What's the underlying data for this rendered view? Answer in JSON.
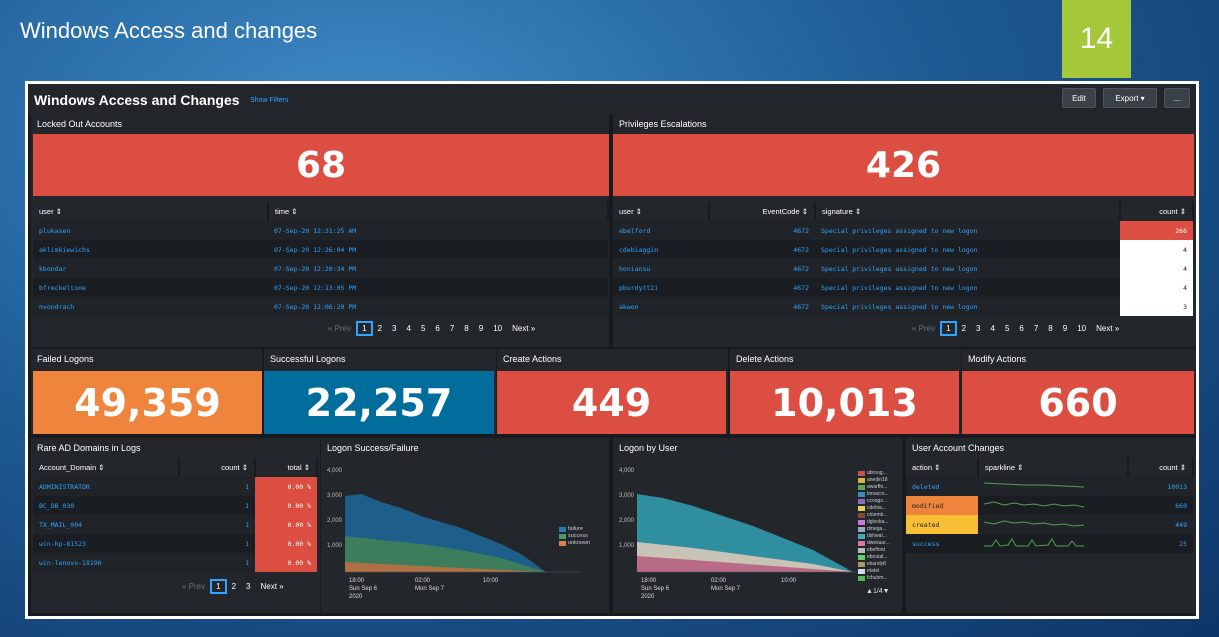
{
  "slide": {
    "title": "Windows Access and changes",
    "number": "14"
  },
  "dashboard": {
    "title": "Windows Access and Changes",
    "show_filters": "Show Filters",
    "edit": "Edit",
    "export": "Export",
    "more": "..."
  },
  "locked": {
    "title": "Locked Out Accounts",
    "value": "68",
    "headers": [
      "user",
      "time"
    ],
    "rows": [
      [
        "plukasen",
        "07-Sep-20 12:31:25 AM"
      ],
      [
        "aklimkiewichs",
        "07-Sep-20 12:26:04 PM"
      ],
      [
        "kbondar",
        "07-Sep-20 12:20:34 PM"
      ],
      [
        "bfreckeltone",
        "07-Sep-20 12:13:05 PM"
      ],
      [
        "nvondrach",
        "07-Sep-20 12:06:20 PM"
      ]
    ]
  },
  "priv": {
    "title": "Privileges Escalations",
    "value": "426",
    "headers": [
      "user",
      "EventCode",
      "signature",
      "count"
    ],
    "rows": [
      [
        "ebelford",
        "4672",
        "Special privileges assigned to new logon",
        "266"
      ],
      [
        "cdebiaggin",
        "4672",
        "Special privileges assigned to new logon",
        "4"
      ],
      [
        "honiansu",
        "4672",
        "Special privileges assigned to new logon",
        "4"
      ],
      [
        "pburdytt2i",
        "4672",
        "Special privileges assigned to new logon",
        "4"
      ],
      [
        "akwon",
        "4672",
        "Special privileges assigned to new logon",
        "3"
      ]
    ]
  },
  "pager10": {
    "prev": "« Prev",
    "pages": [
      "1",
      "2",
      "3",
      "4",
      "5",
      "6",
      "7",
      "8",
      "9",
      "10"
    ],
    "next": "Next »"
  },
  "failed": {
    "title": "Failed Logons",
    "value": "49,359"
  },
  "success": {
    "title": "Successful Logons",
    "value": "22,257"
  },
  "create": {
    "title": "Create Actions",
    "value": "449"
  },
  "delete": {
    "title": "Delete Actions",
    "value": "10,013"
  },
  "modify": {
    "title": "Modify Actions",
    "value": "660"
  },
  "rare": {
    "title": "Rare AD Domains in Logs",
    "headers": [
      "Account_Domain",
      "count",
      "total"
    ],
    "rows": [
      [
        "ADMINISTRATOR",
        "1",
        "0.00 %"
      ],
      [
        "BC_DB_030",
        "1",
        "0.00 %"
      ],
      [
        "TX_MAIL_004",
        "1",
        "0.00 %"
      ],
      [
        "win-hp-81523",
        "1",
        "0.00 %"
      ],
      [
        "win-lenovo-18196",
        "1",
        "0.00 %"
      ]
    ],
    "pager": {
      "prev": "« Prev",
      "pages": [
        "1",
        "2",
        "3"
      ],
      "next": "Next »"
    }
  },
  "logon_sf": {
    "title": "Logon Success/Failure",
    "yticks": [
      "4,000",
      "3,000",
      "2,000",
      "1,000"
    ],
    "xticks": [
      "18:00",
      "02:00",
      "10:00"
    ],
    "xsub": [
      "Sun Sep 6",
      "Mon Sep 7",
      ""
    ],
    "xyear": "2020",
    "legend": [
      "failure",
      "success",
      "unknown"
    ],
    "colors": [
      "#2a7bb0",
      "#4a9a6a",
      "#d9854a"
    ]
  },
  "logon_user": {
    "title": "Logon by User",
    "yticks": [
      "4,000",
      "3,000",
      "2,000",
      "1,000"
    ],
    "xticks": [
      "18:00",
      "02:00",
      "10:00"
    ],
    "xsub": [
      "Sun Sep 6",
      "Mon Sep 7",
      ""
    ],
    "xyear": "2020",
    "legend": [
      "abroug...",
      "anedin18",
      "awarffe...",
      "bmacco...",
      "ccoogs...",
      "cdebia...",
      "ctoomb...",
      "dglocka...",
      "dmega...",
      "dshwal...",
      "dwesaur...",
      "ebelford",
      "eboutal...",
      "ekaroly8",
      "etatel",
      "fchuhm..."
    ],
    "colors": [
      "#c94f4f",
      "#d9b44a",
      "#5aa55a",
      "#3a8fb7",
      "#8a6fbf",
      "#e2d25a",
      "#7a4f2a",
      "#c97ad9",
      "#9ab",
      "#4ab",
      "#d97aa0",
      "#bbb",
      "#6c6",
      "#a96",
      "#cde",
      "#5b5"
    ],
    "page": "1/4"
  },
  "uac": {
    "title": "User Account Changes",
    "headers": [
      "action",
      "sparkline",
      "count"
    ],
    "rows": [
      [
        "deleted",
        "10013"
      ],
      [
        "modified",
        "660"
      ],
      [
        "created",
        "449"
      ],
      [
        "success",
        "25"
      ]
    ]
  }
}
